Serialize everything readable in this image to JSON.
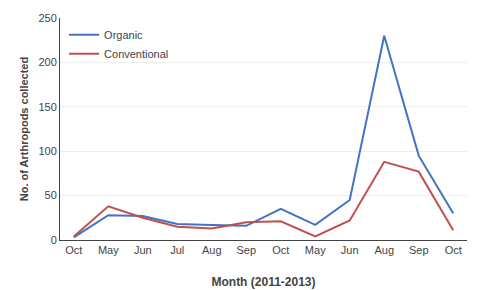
{
  "chart_data": {
    "type": "line",
    "categories": [
      "Oct",
      "May",
      "Jun",
      "Jul",
      "Aug",
      "Sep",
      "Oct",
      "May",
      "Jun",
      "Aug",
      "Sep",
      "Oct"
    ],
    "series": [
      {
        "name": "Organic",
        "color": "#4472C4",
        "values": [
          3,
          28,
          27,
          18,
          17,
          16,
          35,
          17,
          45,
          230,
          95,
          30
        ]
      },
      {
        "name": "Conventional",
        "color": "#C0504D",
        "values": [
          4,
          38,
          25,
          15,
          13,
          20,
          21,
          4,
          22,
          88,
          77,
          11
        ]
      }
    ],
    "xlabel": "Month (2011-2013)",
    "ylabel": "No. of Arthropods collected",
    "ylim": [
      0,
      250
    ],
    "yticks": [
      0,
      50,
      100,
      150,
      200,
      250
    ],
    "grid": true,
    "legend": "upper left"
  }
}
